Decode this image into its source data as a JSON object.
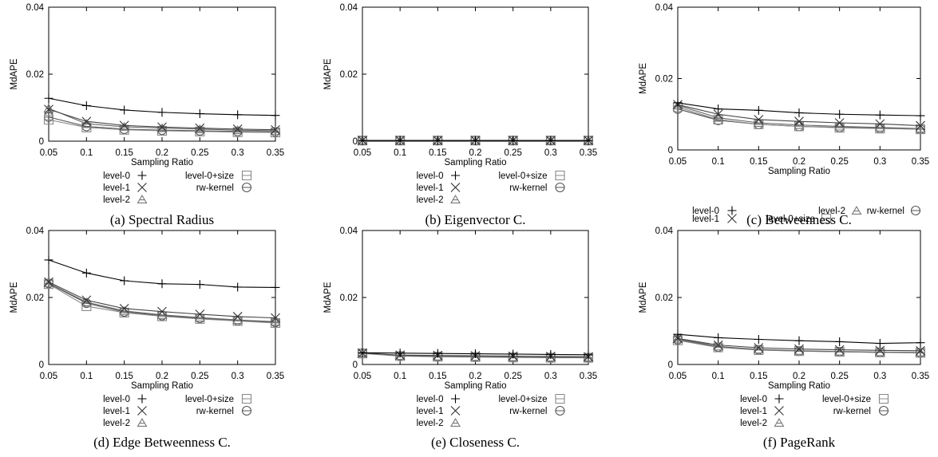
{
  "chart_data": [
    {
      "type": "line",
      "caption": "(a) Spectral Radius",
      "xlabel": "Sampling Ratio",
      "ylabel": "MdAPE",
      "x": [
        0.05,
        0.1,
        0.15,
        0.2,
        0.25,
        0.3,
        0.35
      ],
      "x_tick_labels": [
        "0.05",
        "0.1",
        "0.15",
        "0.2",
        "0.25",
        "0.3",
        "0.35"
      ],
      "ylim": [
        0,
        0.04
      ],
      "y_ticks": [
        0,
        0.02,
        0.04
      ],
      "y_tick_labels": [
        "0",
        "0.02",
        "0.04"
      ],
      "legend_layout": "grid",
      "series": [
        {
          "name": "level-0",
          "marker": "plus",
          "values": [
            0.0128,
            0.0106,
            0.0093,
            0.0086,
            0.0082,
            0.0079,
            0.0077
          ]
        },
        {
          "name": "level-1",
          "marker": "cross",
          "values": [
            0.0095,
            0.0059,
            0.0047,
            0.0042,
            0.0039,
            0.0036,
            0.0034
          ]
        },
        {
          "name": "level-2",
          "marker": "triangle",
          "values": [
            0.0098,
            0.0052,
            0.0043,
            0.0039,
            0.0036,
            0.0033,
            0.0031
          ]
        },
        {
          "name": "level-0+size",
          "marker": "square",
          "values": [
            0.0064,
            0.0041,
            0.0034,
            0.0031,
            0.0029,
            0.0027,
            0.0026
          ]
        },
        {
          "name": "rw-kernel",
          "marker": "circle",
          "values": [
            0.0072,
            0.0044,
            0.0036,
            0.0033,
            0.0031,
            0.0029,
            0.0028
          ]
        }
      ]
    },
    {
      "type": "line",
      "caption": "(b) Eigenvector C.",
      "xlabel": "Sampling Ratio",
      "ylabel": "MdAPE",
      "x": [
        0.05,
        0.1,
        0.15,
        0.2,
        0.25,
        0.3,
        0.35
      ],
      "x_tick_labels": [
        "0.05",
        "0.1",
        "0.15",
        "0.2",
        "0.25",
        "0.3",
        "0.35"
      ],
      "ylim": [
        0,
        0.04
      ],
      "y_ticks": [
        0,
        0.02,
        0.04
      ],
      "y_tick_labels": [
        "0",
        "0.02",
        "0.04"
      ],
      "legend_layout": "grid",
      "series": [
        {
          "name": "level-0",
          "marker": "plus",
          "values": [
            0.0002,
            0.0002,
            0.0002,
            0.0002,
            0.0002,
            0.0002,
            0.0002
          ]
        },
        {
          "name": "level-1",
          "marker": "cross",
          "values": [
            0.0002,
            0.0002,
            0.0002,
            0.0002,
            0.0002,
            0.0002,
            0.0002
          ]
        },
        {
          "name": "level-2",
          "marker": "triangle",
          "values": [
            0.0002,
            0.0002,
            0.0002,
            0.0002,
            0.0002,
            0.0002,
            0.0002
          ]
        },
        {
          "name": "level-0+size",
          "marker": "square",
          "values": [
            0.0002,
            0.0002,
            0.0002,
            0.0002,
            0.0002,
            0.0002,
            0.0002
          ]
        },
        {
          "name": "rw-kernel",
          "marker": "circle",
          "values": [
            0.0002,
            0.0002,
            0.0002,
            0.0002,
            0.0002,
            0.0002,
            0.0002
          ]
        }
      ]
    },
    {
      "type": "line",
      "caption": "(c) Betweenness C.",
      "xlabel": "Sampling Ratio",
      "ylabel": "MdAPE",
      "x": [
        0.05,
        0.1,
        0.15,
        0.2,
        0.25,
        0.3,
        0.35
      ],
      "x_tick_labels": [
        "0.05",
        "0.1",
        "0.15",
        "0.2",
        "0.25",
        "0.3",
        "0.35"
      ],
      "ylim": [
        0,
        0.04
      ],
      "y_ticks": [
        0,
        0.02,
        0.04
      ],
      "y_tick_labels": [
        "0",
        "0.02",
        "0.04"
      ],
      "legend_layout": "row",
      "series": [
        {
          "name": "level-0",
          "marker": "plus",
          "values": [
            0.0132,
            0.0115,
            0.0111,
            0.0104,
            0.01,
            0.0098,
            0.0096
          ]
        },
        {
          "name": "level-1",
          "marker": "cross",
          "values": [
            0.0127,
            0.01,
            0.0085,
            0.008,
            0.0076,
            0.0073,
            0.0068
          ]
        },
        {
          "name": "level-2",
          "marker": "triangle",
          "values": [
            0.0125,
            0.009,
            0.0076,
            0.007,
            0.0066,
            0.0063,
            0.006
          ]
        },
        {
          "name": "level-0+size",
          "marker": "square",
          "values": [
            0.012,
            0.0085,
            0.0072,
            0.0066,
            0.0062,
            0.006,
            0.0058
          ]
        },
        {
          "name": "rw-kernel",
          "marker": "circle",
          "values": [
            0.0115,
            0.0083,
            0.0072,
            0.0066,
            0.0063,
            0.0061,
            0.0058
          ]
        }
      ]
    },
    {
      "type": "line",
      "caption": "(d) Edge Betweenness C.",
      "xlabel": "Sampling Ratio",
      "ylabel": "MdAPE",
      "x": [
        0.05,
        0.1,
        0.15,
        0.2,
        0.25,
        0.3,
        0.35
      ],
      "x_tick_labels": [
        "0.05",
        "0.1",
        "0.15",
        "0.2",
        "0.25",
        "0.3",
        "0.35"
      ],
      "ylim": [
        0,
        0.04
      ],
      "y_ticks": [
        0,
        0.02,
        0.04
      ],
      "y_tick_labels": [
        "0",
        "0.02",
        "0.04"
      ],
      "legend_layout": "grid",
      "series": [
        {
          "name": "level-0",
          "marker": "plus",
          "values": [
            0.0312,
            0.0273,
            0.025,
            0.0241,
            0.0239,
            0.0231,
            0.023
          ]
        },
        {
          "name": "level-1",
          "marker": "cross",
          "values": [
            0.0246,
            0.0192,
            0.0167,
            0.0158,
            0.015,
            0.0143,
            0.0139
          ]
        },
        {
          "name": "level-2",
          "marker": "triangle",
          "values": [
            0.0243,
            0.0186,
            0.016,
            0.0148,
            0.014,
            0.0133,
            0.0128
          ]
        },
        {
          "name": "level-0+size",
          "marker": "square",
          "values": [
            0.024,
            0.0174,
            0.0155,
            0.0144,
            0.0136,
            0.013,
            0.0124
          ]
        },
        {
          "name": "rw-kernel",
          "marker": "circle",
          "values": [
            0.0242,
            0.0183,
            0.0157,
            0.0146,
            0.0138,
            0.0131,
            0.0126
          ]
        }
      ]
    },
    {
      "type": "line",
      "caption": "(e) Closeness C.",
      "xlabel": "Sampling Ratio",
      "ylabel": "MdAPE",
      "x": [
        0.05,
        0.1,
        0.15,
        0.2,
        0.25,
        0.3,
        0.35
      ],
      "x_tick_labels": [
        "0.05",
        "0.1",
        "0.15",
        "0.2",
        "0.25",
        "0.3",
        "0.35"
      ],
      "ylim": [
        0,
        0.04
      ],
      "y_ticks": [
        0,
        0.02,
        0.04
      ],
      "y_tick_labels": [
        "0",
        "0.02",
        "0.04"
      ],
      "legend_layout": "grid",
      "series": [
        {
          "name": "level-0",
          "marker": "plus",
          "values": [
            0.0035,
            0.0034,
            0.0033,
            0.0032,
            0.0031,
            0.003,
            0.0029
          ]
        },
        {
          "name": "level-1",
          "marker": "cross",
          "values": [
            0.0034,
            0.0028,
            0.0027,
            0.0026,
            0.0025,
            0.0024,
            0.0023
          ]
        },
        {
          "name": "level-2",
          "marker": "triangle",
          "values": [
            0.0036,
            0.0026,
            0.0024,
            0.0023,
            0.0022,
            0.0021,
            0.0021
          ]
        },
        {
          "name": "level-0+size",
          "marker": "square",
          "values": [
            0.0033,
            0.0025,
            0.0023,
            0.0022,
            0.0021,
            0.002,
            0.002
          ]
        },
        {
          "name": "rw-kernel",
          "marker": "circle",
          "values": [
            0.0034,
            0.0026,
            0.0024,
            0.0023,
            0.0022,
            0.0021,
            0.002
          ]
        }
      ]
    },
    {
      "type": "line",
      "caption": "(f) PageRank",
      "xlabel": "Sampling Ratio",
      "ylabel": "MdAPE",
      "x": [
        0.05,
        0.1,
        0.15,
        0.2,
        0.25,
        0.3,
        0.35
      ],
      "x_tick_labels": [
        "0.05",
        "0.1",
        "0.15",
        "0.2",
        "0.25",
        "0.3",
        "0.35"
      ],
      "ylim": [
        0,
        0.04
      ],
      "y_ticks": [
        0,
        0.02,
        0.04
      ],
      "y_tick_labels": [
        "0",
        "0.02",
        "0.04"
      ],
      "legend_layout": "grid",
      "series": [
        {
          "name": "level-0",
          "marker": "plus",
          "values": [
            0.009,
            0.008,
            0.0075,
            0.0071,
            0.0068,
            0.0063,
            0.0065
          ]
        },
        {
          "name": "level-1",
          "marker": "cross",
          "values": [
            0.0078,
            0.0058,
            0.005,
            0.0046,
            0.0044,
            0.0042,
            0.0041
          ]
        },
        {
          "name": "level-2",
          "marker": "triangle",
          "values": [
            0.0077,
            0.0054,
            0.0045,
            0.0041,
            0.0039,
            0.0037,
            0.0036
          ]
        },
        {
          "name": "level-0+size",
          "marker": "square",
          "values": [
            0.0072,
            0.0051,
            0.0043,
            0.004,
            0.0038,
            0.0036,
            0.0035
          ]
        },
        {
          "name": "rw-kernel",
          "marker": "circle",
          "values": [
            0.0074,
            0.0052,
            0.0044,
            0.004,
            0.0038,
            0.0036,
            0.0035
          ]
        }
      ]
    }
  ]
}
